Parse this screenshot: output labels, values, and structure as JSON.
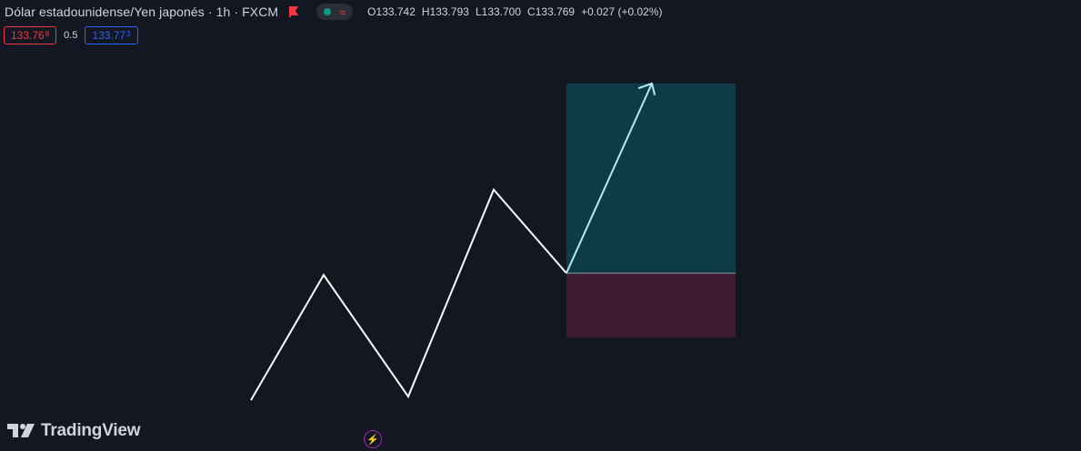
{
  "header": {
    "symbol_title": "Dólar estadounidense/Yen japonés · 1h · FXCM",
    "ohlc": [
      {
        "label": "O",
        "value": "133.742"
      },
      {
        "label": "H",
        "value": "133.793"
      },
      {
        "label": "L",
        "value": "133.700"
      },
      {
        "label": "C",
        "value": "133.769"
      }
    ],
    "change": "+0.027 (+0.02%)",
    "flag_icon": "flag-icon",
    "market_status_icon": "market-open-dot-icon",
    "wave_icon": "wave-icon"
  },
  "quote": {
    "sell_main": "133.76",
    "sell_sup": "8",
    "spread": "0.5",
    "buy_main": "133.77",
    "buy_sup": "3"
  },
  "colors": {
    "background": "#131722",
    "sell": "#f23645",
    "buy": "#2962ff",
    "market_open": "#089981",
    "profit_zone": "#0f3a47",
    "loss_zone": "#3d1b30",
    "arrow": "#b2ebf2",
    "path_line": "#ffffff",
    "bolt": "#9c27b0"
  },
  "branding": {
    "logo_text": "TradingView",
    "logo_icon": "tradingview-logo-icon"
  },
  "footer": {
    "bolt_icon": "lightning-bolt-icon"
  }
}
